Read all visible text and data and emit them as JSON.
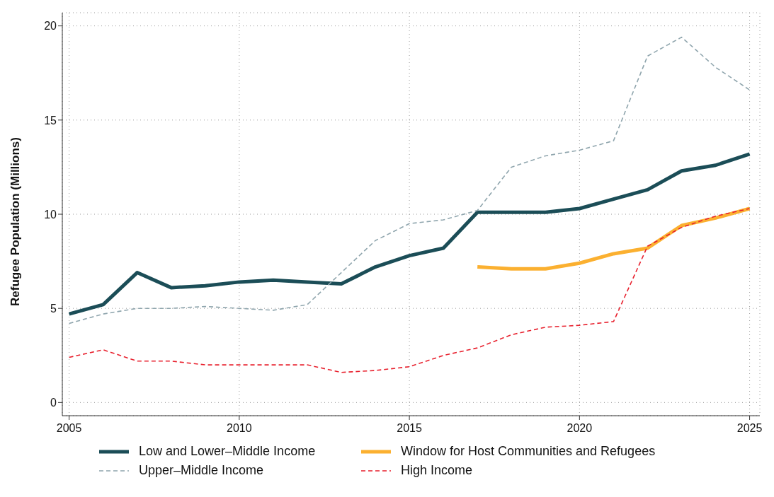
{
  "chart_data": {
    "type": "line",
    "ylabel": "Refugee Population (Millions)",
    "x": [
      2005,
      2006,
      2007,
      2008,
      2009,
      2010,
      2011,
      2012,
      2013,
      2014,
      2015,
      2016,
      2017,
      2018,
      2019,
      2020,
      2021,
      2022,
      2023,
      2024,
      2025
    ],
    "series": [
      {
        "name": "Low and Lower–Middle Income",
        "color": "#1b4d57",
        "line_style": "solid",
        "values": [
          4.7,
          5.2,
          6.9,
          6.1,
          6.2,
          6.4,
          6.5,
          6.4,
          6.3,
          7.2,
          7.8,
          8.2,
          10.1,
          10.1,
          10.1,
          10.3,
          10.8,
          11.3,
          12.3,
          12.6,
          13.2
        ]
      },
      {
        "name": "Window for Host Communities and Refugees",
        "color": "#fbb030",
        "line_style": "solid",
        "values": [
          null,
          null,
          null,
          null,
          null,
          null,
          null,
          null,
          null,
          null,
          null,
          null,
          7.2,
          7.1,
          7.1,
          7.4,
          7.9,
          8.2,
          9.4,
          9.8,
          10.3
        ]
      },
      {
        "name": "Upper–Middle Income",
        "color": "#8fa5ad",
        "line_style": "dashed",
        "values": [
          4.2,
          4.7,
          5.0,
          5.0,
          5.1,
          5.0,
          4.9,
          5.2,
          6.9,
          8.6,
          9.5,
          9.7,
          10.2,
          12.5,
          13.1,
          13.4,
          13.9,
          18.4,
          19.4,
          17.8,
          16.6
        ]
      },
      {
        "name": "High Income",
        "color": "#e8212e",
        "line_style": "dashed",
        "values": [
          2.4,
          2.8,
          2.2,
          2.2,
          2.0,
          2.0,
          2.0,
          2.0,
          1.6,
          1.7,
          1.9,
          2.5,
          2.9,
          3.6,
          4.0,
          4.1,
          4.3,
          8.3,
          9.3,
          9.9,
          10.3
        ]
      }
    ],
    "xlim": [
      2004.8,
      2025.3
    ],
    "xticks": [
      2005,
      2010,
      2015,
      2020,
      2025
    ],
    "ylim": [
      -0.7,
      20.7
    ],
    "yticks": [
      0,
      5,
      10,
      15,
      20
    ],
    "grid": true,
    "legend": "bottom"
  }
}
